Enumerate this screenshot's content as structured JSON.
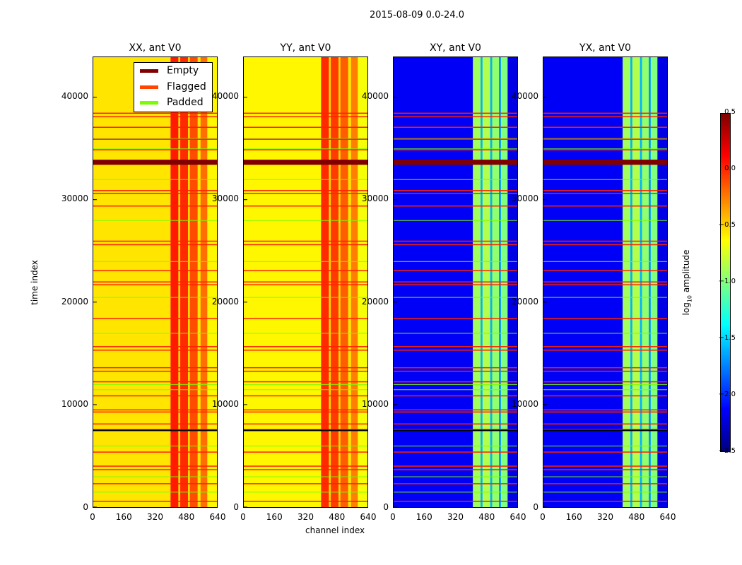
{
  "figure_title": "2015-08-09 0.0-24.0",
  "xlabel": "channel index",
  "ylabel": "time index",
  "colorbar": {
    "label": "log10 amplitude",
    "label_main": "log",
    "label_sub": "10",
    "label_rest": " amplitude",
    "ticks": [
      "0.5",
      "0.0",
      "−0.5",
      "−1.0",
      "−1.5",
      "−2.0",
      "−2.5"
    ],
    "tick_values": [
      0.5,
      0,
      -0.5,
      -1,
      -1.5,
      -2,
      -2.5
    ],
    "range": [
      -2.5,
      0.5
    ],
    "colormap": "jet"
  },
  "legend": {
    "placement": "upper-right of first panel",
    "items": [
      {
        "label": "Empty",
        "color": "#800000"
      },
      {
        "label": "Flagged",
        "color": "#ff4500"
      },
      {
        "label": "Padded",
        "color": "#7cfc00"
      }
    ]
  },
  "chart_data": {
    "type": "heatmap",
    "title": "2015-08-09 0.0-24.0",
    "xlabel": "channel index",
    "ylabel": "time index",
    "xlim": [
      0,
      640
    ],
    "ylim": [
      0,
      43900
    ],
    "xticks": [
      "0",
      "160",
      "320",
      "480",
      "640"
    ],
    "xtick_values": [
      0,
      160,
      320,
      480,
      640
    ],
    "yticks": [
      "0",
      "10000",
      "20000",
      "30000",
      "40000"
    ],
    "ytick_values": [
      0,
      10000,
      20000,
      30000,
      40000
    ],
    "flagged_times": [
      617,
      2332,
      3704,
      4047,
      5419,
      7615,
      8163,
      9329,
      9535,
      10907,
      12279,
      13308,
      13651,
      15366,
      15709,
      18453,
      21746,
      22021,
      23118,
      25656,
      26000,
      29430,
      30664,
      30939,
      34917,
      35946,
      37113,
      38142,
      38485
    ],
    "empty_times": [
      [
        33400,
        33900
      ],
      [
        7450,
        7550
      ]
    ],
    "padded_times": [
      1500,
      3000,
      6000,
      11500,
      12000,
      17000,
      20500,
      24000,
      28000,
      32000,
      35000,
      36000
    ],
    "panels": [
      {
        "title": "XX, ant V0",
        "base": -0.6,
        "segments": [
          {
            "from": 0,
            "to": 400,
            "value": -0.55
          },
          {
            "from": 400,
            "to": 440,
            "value": 0.05
          },
          {
            "from": 440,
            "to": 450,
            "value": -0.5
          },
          {
            "from": 450,
            "to": 490,
            "value": 0.0
          },
          {
            "from": 490,
            "to": 500,
            "value": -0.5
          },
          {
            "from": 500,
            "to": 540,
            "value": -0.1
          },
          {
            "from": 540,
            "to": 555,
            "value": -0.55
          },
          {
            "from": 555,
            "to": 590,
            "value": -0.2
          },
          {
            "from": 590,
            "to": 640,
            "value": -0.6
          }
        ]
      },
      {
        "title": "YY, ant V0",
        "base": -0.6,
        "segments": [
          {
            "from": 0,
            "to": 400,
            "value": -0.6
          },
          {
            "from": 400,
            "to": 440,
            "value": 0.0
          },
          {
            "from": 440,
            "to": 450,
            "value": -0.5
          },
          {
            "from": 450,
            "to": 490,
            "value": -0.05
          },
          {
            "from": 490,
            "to": 500,
            "value": -0.5
          },
          {
            "from": 500,
            "to": 540,
            "value": -0.15
          },
          {
            "from": 540,
            "to": 555,
            "value": -0.55
          },
          {
            "from": 555,
            "to": 590,
            "value": -0.25
          },
          {
            "from": 590,
            "to": 640,
            "value": -0.65
          }
        ]
      },
      {
        "title": "XY, ant V0",
        "base": -2.2,
        "segments": [
          {
            "from": 0,
            "to": 410,
            "value": -2.15
          },
          {
            "from": 410,
            "to": 450,
            "value": -0.9
          },
          {
            "from": 450,
            "to": 460,
            "value": -1.6
          },
          {
            "from": 460,
            "to": 500,
            "value": -0.85
          },
          {
            "from": 500,
            "to": 510,
            "value": -1.6
          },
          {
            "from": 510,
            "to": 545,
            "value": -0.95
          },
          {
            "from": 545,
            "to": 555,
            "value": -1.7
          },
          {
            "from": 555,
            "to": 590,
            "value": -1.0
          },
          {
            "from": 590,
            "to": 640,
            "value": -2.2
          }
        ]
      },
      {
        "title": "YX, ant V0",
        "base": -2.2,
        "segments": [
          {
            "from": 0,
            "to": 410,
            "value": -2.15
          },
          {
            "from": 410,
            "to": 450,
            "value": -0.9
          },
          {
            "from": 450,
            "to": 460,
            "value": -1.6
          },
          {
            "from": 460,
            "to": 500,
            "value": -0.85
          },
          {
            "from": 500,
            "to": 510,
            "value": -1.6
          },
          {
            "from": 510,
            "to": 545,
            "value": -0.95
          },
          {
            "from": 545,
            "to": 555,
            "value": -1.7
          },
          {
            "from": 555,
            "to": 590,
            "value": -1.0
          },
          {
            "from": 590,
            "to": 640,
            "value": -2.2
          }
        ]
      }
    ]
  }
}
